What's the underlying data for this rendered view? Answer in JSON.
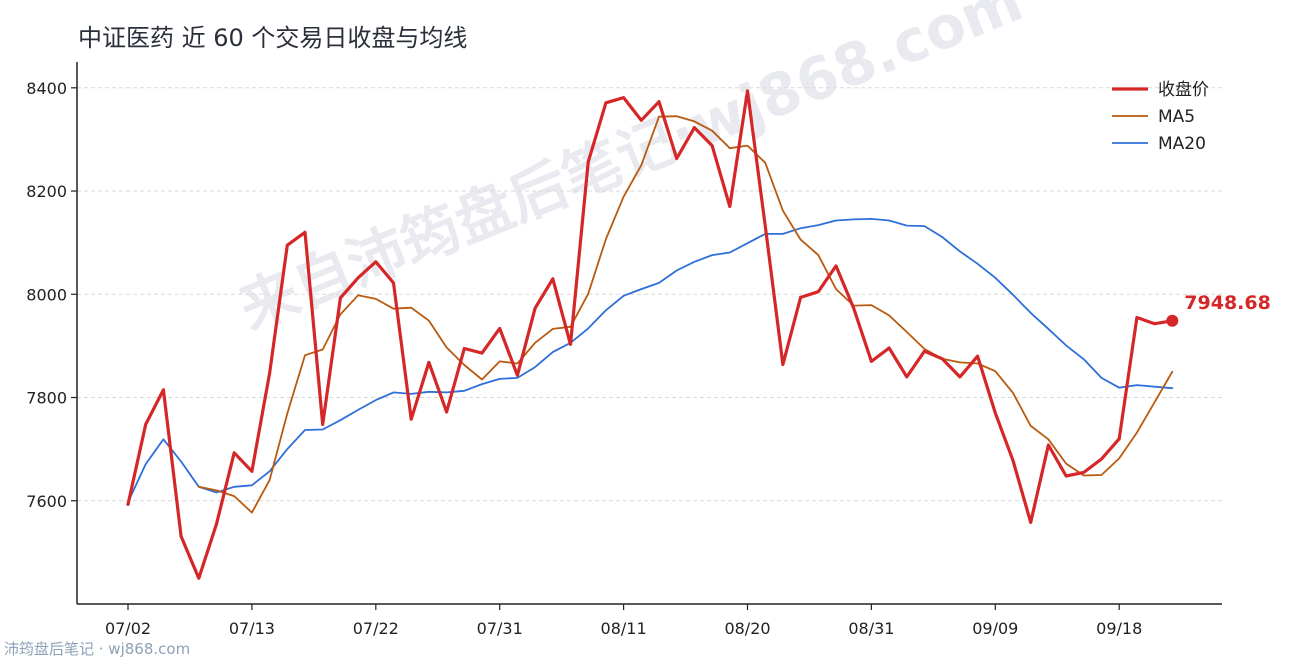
{
  "chart_title": "中证医药 近 60 个交易日收盘与均线",
  "watermark_text": "来自沛筠盘后笔记·wj868.com",
  "footer": "沛筠盘后笔记 · wj868.com",
  "colors": {
    "close": "#d62728",
    "ma5": "#b85a0f",
    "ma20": "#2e6fd9",
    "grid": "#d9d9d9",
    "axis": "#222222"
  },
  "chart_data": {
    "type": "line",
    "title": "中证医药 近 60 个交易日收盘与均线",
    "xlabel": "",
    "ylabel": "",
    "ylim": [
      7400,
      8450
    ],
    "yticks": [
      7600,
      7800,
      8000,
      8200,
      8400
    ],
    "x_tick_labels": [
      "07/02",
      "07/13",
      "07/22",
      "07/31",
      "08/11",
      "08/20",
      "08/31",
      "09/09",
      "09/18"
    ],
    "x_tick_index": [
      0,
      7,
      14,
      21,
      28,
      35,
      42,
      49,
      56
    ],
    "legend_position": "top-right",
    "grid": "horizontal dashed",
    "end_label": "7948.68",
    "series": [
      {
        "name": "收盘价",
        "color": "#d62728",
        "values": [
          7593,
          7748,
          7815,
          7531,
          7450,
          7555,
          7693,
          7657,
          7847,
          8095,
          8120,
          7748,
          7993,
          8032,
          8063,
          8022,
          7758,
          7868,
          7772,
          7895,
          7886,
          7934,
          7843,
          7973,
          8030,
          7903,
          8256,
          8371,
          8381,
          8337,
          8373,
          8263,
          8323,
          8288,
          8170,
          8394,
          8133,
          7864,
          7994,
          8005,
          8055,
          7973,
          7870,
          7896,
          7840,
          7890,
          7875,
          7840,
          7880,
          7770,
          7678,
          7558,
          7708,
          7648,
          7655,
          7681,
          7720,
          7955,
          7943,
          7948.68
        ]
      },
      {
        "name": "MA5",
        "color": "#b85a0f",
        "values": [
          null,
          null,
          null,
          null,
          7627,
          7620,
          7609,
          7577,
          7640,
          7769,
          7882,
          7893,
          7961,
          7998,
          7991,
          7972,
          7974,
          7949,
          7897,
          7863,
          7835,
          7870,
          7866,
          7906,
          7933,
          7937,
          8001,
          8107,
          8189,
          8250,
          8344,
          8345,
          8335,
          8317,
          8283,
          8288,
          8255,
          8162,
          8106,
          8076,
          8010,
          7978,
          7979,
          7959,
          7927,
          7894,
          7875,
          7868,
          7866,
          7851,
          7809,
          7745,
          7719,
          7672,
          7649,
          7650,
          7682,
          7732,
          7791,
          7850
        ]
      },
      {
        "name": "MA20",
        "color": "#2e6fd9",
        "values": [
          7597,
          7671,
          7719,
          7676,
          7627,
          7616,
          7627,
          7630,
          7657,
          7700,
          7737,
          7738,
          7756,
          7776,
          7795,
          7810,
          7807,
          7811,
          7810,
          7813,
          7826,
          7836,
          7838,
          7859,
          7888,
          7906,
          7934,
          7969,
          7997,
          8010,
          8022,
          8046,
          8063,
          8076,
          8081,
          8099,
          8117,
          8117,
          8128,
          8134,
          8143,
          8145,
          8146,
          8143,
          8133,
          8132,
          8111,
          8083,
          8059,
          8032,
          7999,
          7964,
          7933,
          7901,
          7874,
          7838,
          7819,
          7824,
          7821,
          7818
        ]
      }
    ]
  }
}
